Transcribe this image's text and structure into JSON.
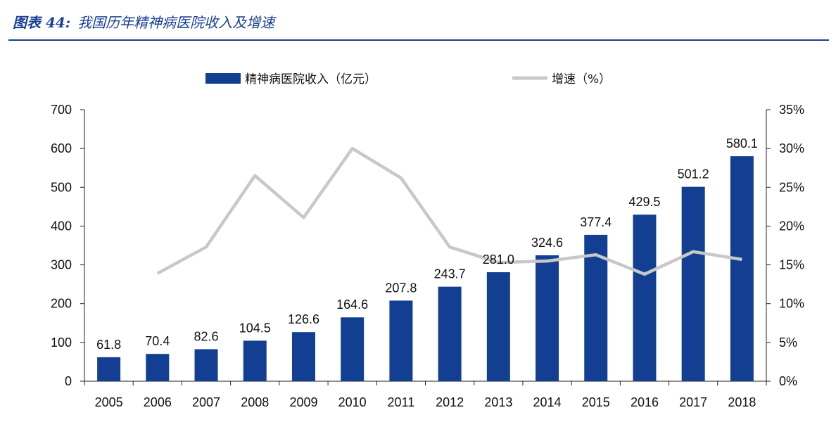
{
  "header": {
    "label": "图表 44:",
    "title": "我国历年精神病医院收入及增速"
  },
  "colors": {
    "bar": "#133f93",
    "line": "#c8c8c8",
    "accent": "#1a3f94"
  },
  "chart_data": {
    "type": "bar",
    "title": "我国历年精神病医院收入及增速",
    "categories": [
      "2005",
      "2006",
      "2007",
      "2008",
      "2009",
      "2010",
      "2011",
      "2012",
      "2013",
      "2014",
      "2015",
      "2016",
      "2017",
      "2018"
    ],
    "series": [
      {
        "name": "精神病医院收入（亿元）",
        "type": "bar",
        "axis": "left",
        "values": [
          61.8,
          70.4,
          82.6,
          104.5,
          126.6,
          164.6,
          207.8,
          243.7,
          281.0,
          324.6,
          377.4,
          429.5,
          501.2,
          580.1
        ],
        "labels": [
          "61.8",
          "70.4",
          "82.6",
          "104.5",
          "126.6",
          "164.6",
          "207.8",
          "243.7",
          "281.0",
          "324.6",
          "377.4",
          "429.5",
          "501.2",
          "580.1"
        ]
      },
      {
        "name": "增速（%）",
        "type": "line",
        "axis": "right",
        "values": [
          null,
          13.9,
          17.3,
          26.5,
          21.1,
          30.0,
          26.2,
          17.3,
          15.3,
          15.5,
          16.3,
          13.8,
          16.7,
          15.7
        ]
      }
    ],
    "y_left": {
      "range": [
        0,
        700
      ],
      "ticks": [
        "0",
        "100",
        "200",
        "300",
        "400",
        "500",
        "600",
        "700"
      ]
    },
    "y_right": {
      "range": [
        0,
        35
      ],
      "ticks": [
        "0%",
        "5%",
        "10%",
        "15%",
        "20%",
        "25%",
        "30%",
        "35%"
      ]
    },
    "grid": false,
    "legend": "top-center"
  }
}
